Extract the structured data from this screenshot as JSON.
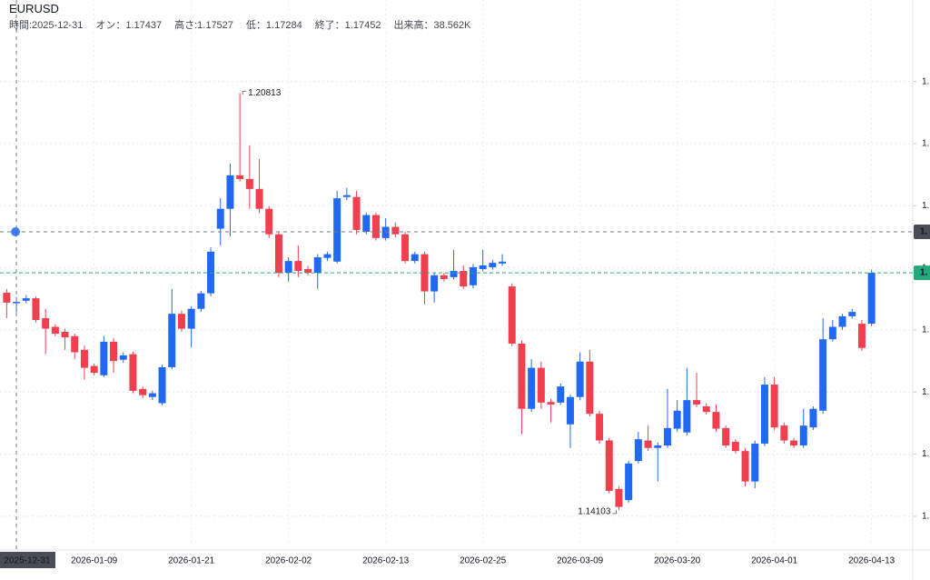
{
  "chart_data": {
    "type": "candlestick",
    "title": "EURUSD",
    "info": [
      "時間:2025-12-31",
      "オン：1.17437",
      "高さ:1.17527",
      "低：1.17284",
      "終了：1.17452",
      "出来高：38.562K"
    ],
    "categories": [
      null,
      "2025-12-31",
      null,
      null,
      null,
      null,
      null,
      null,
      null,
      "2026-01-09",
      null,
      null,
      null,
      null,
      null,
      null,
      null,
      null,
      null,
      "2026-01-21",
      null,
      null,
      null,
      null,
      null,
      null,
      null,
      null,
      null,
      "2026-02-02",
      null,
      null,
      null,
      null,
      null,
      null,
      null,
      null,
      null,
      "2026-02-13",
      null,
      null,
      null,
      null,
      null,
      null,
      null,
      null,
      null,
      "2026-02-25",
      null,
      null,
      null,
      null,
      null,
      null,
      null,
      null,
      null,
      "2026-03-09",
      null,
      null,
      null,
      null,
      null,
      null,
      null,
      null,
      null,
      "2026-03-20",
      null,
      null,
      null,
      null,
      null,
      null,
      null,
      null,
      null,
      "2026-04-01",
      null,
      null,
      null,
      null,
      null,
      null,
      null,
      null,
      null,
      "2026-04-13"
    ],
    "open": [
      1.176,
      1.17437,
      1.1747,
      1.1751,
      1.1719,
      1.1705,
      1.1697,
      1.169,
      1.1668,
      1.1642,
      1.1627,
      1.1681,
      1.1652,
      1.1661,
      1.1605,
      1.1592,
      1.1582,
      1.164,
      1.1726,
      1.1702,
      1.1734,
      1.1759,
      1.1863,
      1.1895,
      1.1949,
      1.1943,
      1.1927,
      1.1895,
      1.1854,
      1.1792,
      1.1811,
      1.1798,
      1.1792,
      1.1816,
      1.181,
      1.1914,
      1.1914,
      1.1858,
      1.1885,
      1.1848,
      1.1866,
      1.1854,
      1.1811,
      1.1822,
      1.1762,
      1.1788,
      1.1785,
      1.1795,
      1.1772,
      1.1798,
      1.1801,
      1.1807,
      1.177,
      1.1678,
      1.1573,
      1.1639,
      1.1584,
      1.1583,
      1.1548,
      1.1592,
      1.1649,
      1.1565,
      1.1522,
      1.1444,
      1.1426,
      1.1489,
      1.1522,
      1.151,
      1.1514,
      1.1541,
      1.1535,
      1.1587,
      1.1577,
      1.1568,
      1.1542,
      1.152,
      1.1505,
      1.1456,
      1.1517,
      1.1612,
      1.1546,
      1.1522,
      1.1514,
      1.1543,
      1.157,
      1.1685,
      1.1705,
      1.1722,
      1.171,
      1.171
    ],
    "high": [
      1.1766,
      1.17527,
      1.1756,
      1.1754,
      1.1734,
      1.1709,
      1.1702,
      1.1694,
      1.1675,
      1.1646,
      1.169,
      1.1687,
      1.1664,
      1.1665,
      1.1609,
      1.1602,
      1.1644,
      1.1766,
      1.1731,
      1.1738,
      1.1763,
      1.1833,
      1.1912,
      1.1968,
      1.20813,
      1.1997,
      1.1975,
      1.1899,
      1.1858,
      1.1817,
      1.1836,
      1.1803,
      1.1822,
      1.1826,
      1.1924,
      1.1929,
      1.1924,
      1.1889,
      1.1889,
      1.188,
      1.1873,
      1.1858,
      1.1826,
      1.1826,
      1.1792,
      1.1792,
      1.1829,
      1.1804,
      1.1806,
      1.1829,
      1.1813,
      1.1822,
      1.1775,
      1.1683,
      1.1653,
      1.1649,
      1.1589,
      1.1614,
      1.1596,
      1.1664,
      1.1668,
      1.157,
      1.1526,
      1.1448,
      1.1489,
      1.1536,
      1.1546,
      1.1519,
      1.1605,
      1.1587,
      1.1639,
      1.1631,
      1.1582,
      1.158,
      1.1546,
      1.1524,
      1.151,
      1.1522,
      1.1624,
      1.1624,
      1.1551,
      1.1526,
      1.1573,
      1.1577,
      1.1719,
      1.1716,
      1.1726,
      1.1734,
      1.1716,
      1.1797
    ],
    "low": [
      1.1719,
      1.17284,
      1.1743,
      1.1712,
      1.1661,
      1.169,
      1.1668,
      1.1653,
      1.162,
      1.1627,
      1.1624,
      1.1631,
      1.1647,
      1.1598,
      1.159,
      1.1587,
      1.1579,
      1.1637,
      1.1697,
      1.1672,
      1.1729,
      1.1754,
      1.1836,
      1.1851,
      1.1939,
      1.1895,
      1.1888,
      1.1848,
      1.1785,
      1.1778,
      1.1785,
      1.1788,
      1.1766,
      1.1811,
      1.1807,
      1.1909,
      1.1854,
      1.1854,
      1.1844,
      1.1844,
      1.1849,
      1.1807,
      1.1807,
      1.1741,
      1.1744,
      1.1778,
      1.1781,
      1.1766,
      1.1767,
      1.1794,
      1.1797,
      1.1803,
      1.1674,
      1.1532,
      1.1568,
      1.1573,
      1.1551,
      1.1579,
      1.151,
      1.1587,
      1.1561,
      1.1517,
      1.1437,
      1.14103,
      1.1422,
      1.1485,
      1.1505,
      1.1456,
      1.151,
      1.1536,
      1.153,
      1.1576,
      1.1564,
      1.1536,
      1.151,
      1.1501,
      1.1448,
      1.1445,
      1.1513,
      1.1539,
      1.1517,
      1.151,
      1.151,
      1.1539,
      1.1565,
      1.1681,
      1.17,
      1.1718,
      1.1666,
      1.1706
    ],
    "close": [
      1.1744,
      1.17452,
      1.1751,
      1.1716,
      1.1702,
      1.1694,
      1.1688,
      1.1664,
      1.1639,
      1.1631,
      1.1681,
      1.165,
      1.1659,
      1.1602,
      1.1595,
      1.1598,
      1.164,
      1.1726,
      1.1702,
      1.1734,
      1.1759,
      1.1826,
      1.1895,
      1.1949,
      1.1943,
      1.1927,
      1.1895,
      1.1854,
      1.1792,
      1.1811,
      1.1795,
      1.1792,
      1.1817,
      1.1822,
      1.1912,
      1.1917,
      1.1861,
      1.1885,
      1.1848,
      1.1866,
      1.1854,
      1.1811,
      1.1822,
      1.1762,
      1.1788,
      1.1782,
      1.1795,
      1.177,
      1.1801,
      1.1804,
      1.1808,
      1.181,
      1.1678,
      1.1573,
      1.1639,
      1.1583,
      1.158,
      1.1609,
      1.1592,
      1.1649,
      1.1565,
      1.1522,
      1.1441,
      1.1415,
      1.1485,
      1.1524,
      1.151,
      1.1514,
      1.1542,
      1.157,
      1.1587,
      1.158,
      1.1568,
      1.1541,
      1.1514,
      1.1505,
      1.1456,
      1.1517,
      1.1612,
      1.1543,
      1.1522,
      1.1514,
      1.1546,
      1.1573,
      1.1685,
      1.1705,
      1.1722,
      1.1729,
      1.1671,
      1.1792
    ],
    "up_color": "#2168f2",
    "down_color": "#f0404f",
    "ylim": [
      1.1353,
      1.218
    ],
    "yticks": [
      {
        "value": 1.14,
        "label": "1."
      },
      {
        "value": 1.15,
        "label": "1."
      },
      {
        "value": 1.16,
        "label": "1."
      },
      {
        "value": 1.17,
        "label": "1."
      },
      {
        "value": 1.18,
        "label": "1."
      },
      {
        "value": 1.19,
        "label": "1."
      },
      {
        "value": 1.2,
        "label": "1."
      },
      {
        "value": 1.21,
        "label": "1."
      }
    ],
    "grid": true,
    "high_label": "1.20813",
    "low_label": "1.14103",
    "crosshair": {
      "x": "2025-12-31",
      "y": 1.1858,
      "label": "1."
    },
    "last_price_label": "1.",
    "last_price_color": "#26a77c"
  }
}
